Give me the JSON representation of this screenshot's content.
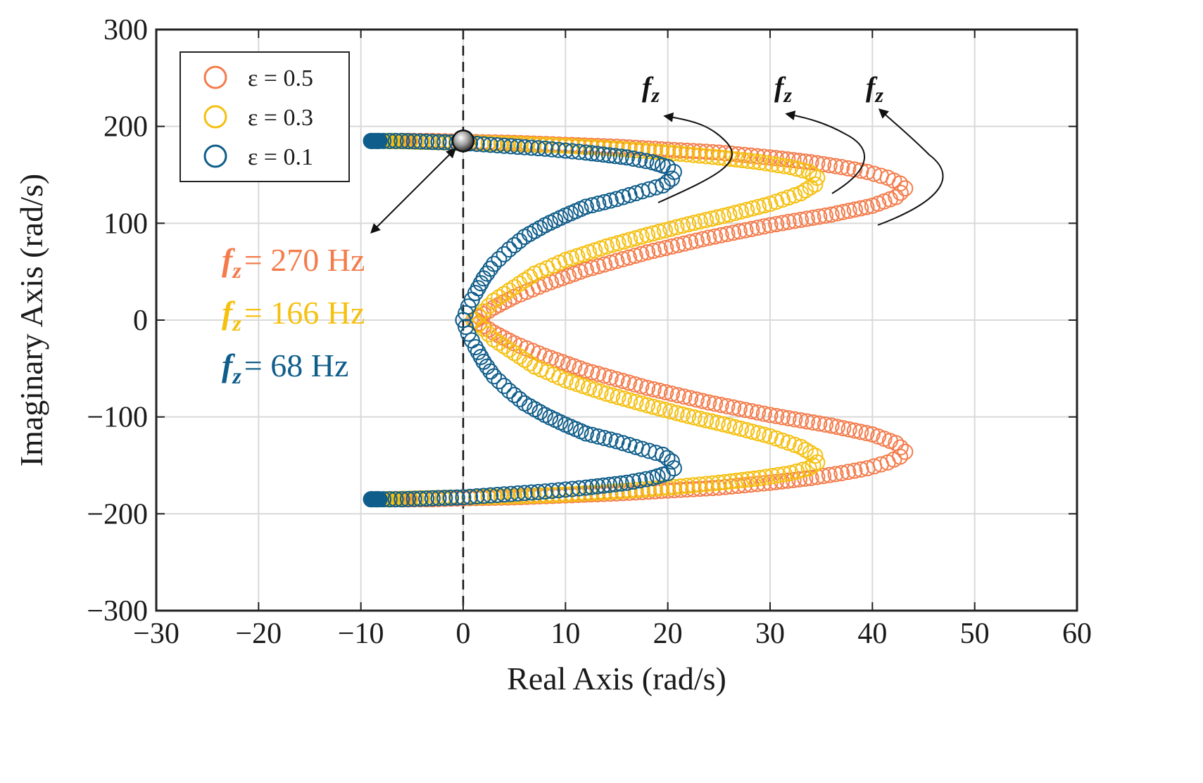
{
  "chart_data": {
    "type": "scatter",
    "title": "",
    "xlabel": "Real Axis (rad/s)",
    "ylabel": "Imaginary Axis (rad/s)",
    "xlim": [
      -30,
      60
    ],
    "ylim": [
      -300,
      300
    ],
    "x_ticks": [
      -30,
      -20,
      -10,
      0,
      10,
      20,
      30,
      40,
      50,
      60
    ],
    "y_ticks": [
      -300,
      -200,
      -100,
      0,
      100,
      200,
      300
    ],
    "x_tick_labels": [
      "−30",
      "−20",
      "−10",
      "0",
      "10",
      "20",
      "30",
      "40",
      "50",
      "60"
    ],
    "y_tick_labels": [
      "−300",
      "−200",
      "−100",
      "0",
      "100",
      "200",
      "300"
    ],
    "grid": true,
    "legend_position": "top-left",
    "vertical_reference_x": 0,
    "series": [
      {
        "name": "ε = 0.5",
        "color": "#f47c4c",
        "fz": "f_z = 270 Hz",
        "x": [
          -6,
          -3,
          0,
          5,
          10,
          15,
          20,
          25,
          30,
          34,
          37,
          39.5,
          41.5,
          42.7,
          43.2,
          42.3,
          40,
          36,
          30,
          24,
          18,
          12,
          8,
          5,
          3,
          2,
          1.2
        ],
        "y": [
          185,
          185,
          184,
          183,
          181,
          179,
          176,
          173,
          168,
          163,
          158,
          153,
          147,
          141,
          136,
          127,
          118,
          109,
          98,
          85,
          70,
          52,
          37,
          24,
          13,
          6,
          0
        ]
      },
      {
        "name": "ε = 0.3",
        "color": "#f5c010",
        "fz": "f_z = 166 Hz",
        "x": [
          -7.5,
          -4,
          0,
          5,
          10,
          15,
          20,
          25,
          29,
          32,
          33.8,
          34.6,
          34.4,
          33,
          30,
          26,
          22,
          18,
          14,
          10,
          7,
          5,
          3,
          2,
          1
        ],
        "y": [
          185,
          184,
          183,
          182,
          180,
          177,
          173,
          168,
          163,
          158,
          153,
          147,
          140,
          131,
          120,
          109,
          99,
          88,
          76,
          62,
          48,
          34,
          20,
          9,
          0
        ]
      },
      {
        "name": "ε = 0.1",
        "color": "#0f5d8a",
        "fz": "f_z = 68 Hz",
        "x": [
          -9,
          -6,
          -3,
          0,
          4,
          8,
          12,
          16,
          18.5,
          20,
          20.6,
          20.4,
          19.5,
          17.5,
          15,
          12,
          10,
          8,
          6,
          4.5,
          3,
          2,
          1.2,
          0.5,
          0
        ],
        "y": [
          185,
          185,
          184,
          183,
          180,
          177,
          173,
          168,
          163,
          158,
          153,
          146,
          139,
          133,
          125,
          117,
          108,
          98,
          86,
          73,
          58,
          43,
          28,
          14,
          0
        ]
      }
    ],
    "legend": [
      {
        "label": "ε = 0.5",
        "color": "#f47c4c"
      },
      {
        "label": "ε = 0.3",
        "color": "#f5c010"
      },
      {
        "label": "ε = 0.1",
        "color": "#0f5d8a"
      }
    ],
    "annotations": {
      "fz_270": "= 270 Hz",
      "fz_166": "= 166 Hz",
      "fz_68": "= 68 Hz",
      "fz_symbol": "f",
      "fz_sub": "z",
      "marker_point": [
        0,
        185
      ]
    }
  }
}
